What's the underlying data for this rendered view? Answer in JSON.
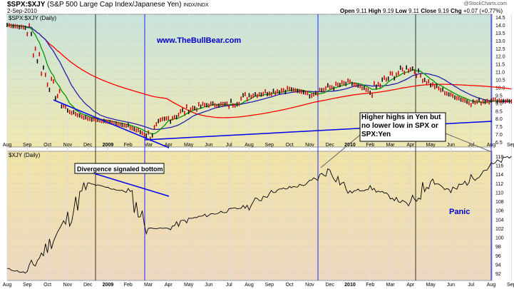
{
  "header": {
    "symbol": "$SPX:$XJY",
    "description": "(S&P 500 Large Cap Index/Japanese Yen)",
    "exchange": "INDX/INDX",
    "date": "2-Sep-2010",
    "copyright": "@StockCharts.com",
    "quote": {
      "open_label": "Open",
      "open": "9.11",
      "high_label": "High",
      "high": "9.19",
      "low_label": "Low",
      "low": "9.11",
      "close_label": "Close",
      "close": "9.19",
      "chg_label": "Chg",
      "chg": "+0.07 (+0.77%)"
    }
  },
  "chart_data": [
    {
      "type": "line",
      "title": "$SPX:$XJY (Daily)",
      "ylim": [
        6.5,
        14.5
      ],
      "yticks": [
        "14.5",
        "14.0",
        "13.5",
        "13.0",
        "12.5",
        "12.0",
        "11.5",
        "11.0",
        "10.5",
        "10.0",
        "9.5",
        "9.0",
        "8.5",
        "8.0",
        "7.5",
        "7.0",
        "6.5"
      ],
      "x": [
        "Aug",
        "Sep",
        "Oct",
        "Nov",
        "Dec",
        "2009",
        "Feb",
        "Mar",
        "Apr",
        "May",
        "Jun",
        "Jul",
        "Aug",
        "Sep",
        "Oct",
        "Nov",
        "Dec",
        "2010",
        "Feb",
        "Mar",
        "Apr",
        "May",
        "Jun",
        "Jul",
        "Aug",
        "Sep"
      ],
      "series": [
        {
          "values": [
            14.0,
            13.8,
            10.5,
            8.5,
            8.0,
            7.8,
            7.5,
            6.9,
            8.0,
            8.6,
            8.9,
            8.9,
            9.5,
            9.7,
            9.9,
            9.6,
            10.0,
            10.3,
            9.7,
            10.7,
            11.3,
            10.2,
            9.5,
            9.0,
            9.2,
            9.1
          ],
          "color": "#cc0000"
        }
      ],
      "moving_averages": [
        {
          "color": "#ff0000"
        },
        {
          "color": "#2222aa"
        },
        {
          "color": "#009900"
        }
      ],
      "annotations": [
        "www.TheBullBear.com"
      ]
    },
    {
      "type": "line",
      "title": "$XJY (Daily)",
      "ylim": [
        91,
        119
      ],
      "yticks": [
        "118",
        "116",
        "114",
        "112",
        "110",
        "108",
        "106",
        "104",
        "102",
        "100",
        "98",
        "96",
        "94",
        "92"
      ],
      "series": [
        {
          "values": [
            93,
            92,
            98,
            104,
            112,
            111,
            110,
            102,
            102,
            104,
            105,
            106,
            107,
            110,
            111,
            112,
            115,
            110,
            111,
            109,
            107,
            113,
            110,
            113,
            116,
            118
          ],
          "color": "#000000"
        }
      ],
      "annotations": [
        "Divergence signaled bottom",
        "Panic"
      ]
    }
  ],
  "xaxis": [
    "Aug",
    "Sep",
    "Oct",
    "Nov",
    "Dec",
    "2009",
    "Feb",
    "Mar",
    "Apr",
    "May",
    "Jun",
    "Jul",
    "Aug",
    "Sep",
    "Oct",
    "Nov",
    "Dec",
    "2010",
    "Feb",
    "Mar",
    "Apr",
    "May",
    "Jun",
    "Jul",
    "Aug",
    "Sep"
  ],
  "callout": "Higher highs in Yen but no lower low in SPX or SPX:Yen"
}
